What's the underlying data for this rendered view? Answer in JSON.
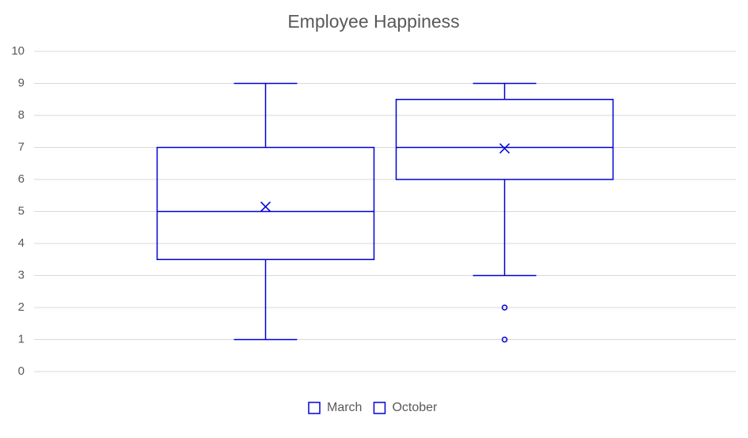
{
  "chart_data": {
    "type": "box",
    "title": "Employee Happiness",
    "series": [
      {
        "name": "March",
        "color": "#0000d4",
        "min": 1,
        "q1": 3.5,
        "median": 5,
        "q3": 7,
        "max": 9,
        "mean": 5.15,
        "outliers": []
      },
      {
        "name": "October",
        "color": "#0000d4",
        "min": 3,
        "q1": 6,
        "median": 7,
        "q3": 8.5,
        "max": 9,
        "mean": 6.97,
        "outliers": [
          2,
          1
        ]
      }
    ],
    "ylim": [
      0,
      10
    ],
    "yticks": [
      0,
      1,
      2,
      3,
      4,
      5,
      6,
      7,
      8,
      9,
      10
    ],
    "grid": true,
    "legend": "bottom"
  }
}
